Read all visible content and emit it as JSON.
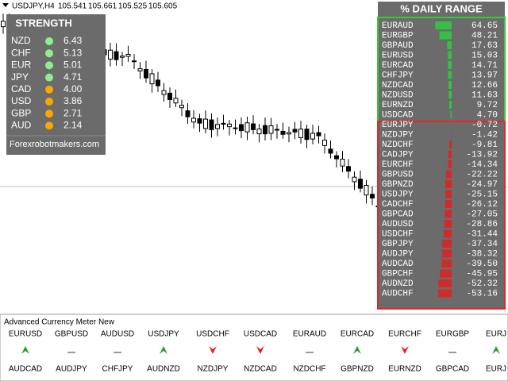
{
  "header": {
    "symbol": "USDJPY,H4",
    "prices": [
      "105.541",
      "105.661",
      "105.525",
      "105.605"
    ]
  },
  "strength": {
    "title": "STRENGTH",
    "footer": "Forexrobotmakers.com",
    "rows": [
      {
        "currency": "NZD",
        "value": "6.43",
        "color": "#90ee90"
      },
      {
        "currency": "CHF",
        "value": "5.13",
        "color": "#90ee90"
      },
      {
        "currency": "EUR",
        "value": "5.01",
        "color": "#90ee90"
      },
      {
        "currency": "JPY",
        "value": "4.71",
        "color": "#90ee90"
      },
      {
        "currency": "CAD",
        "value": "4.00",
        "color": "#ffa500"
      },
      {
        "currency": "USD",
        "value": "3.86",
        "color": "#ffa500"
      },
      {
        "currency": "GBP",
        "value": "2.71",
        "color": "#ffa500"
      },
      {
        "currency": "AUD",
        "value": "2.14",
        "color": "#ffa500"
      }
    ]
  },
  "daily_range": {
    "title": "% DAILY RANGE",
    "rows": [
      {
        "pair": "EURAUD",
        "value": 64.65,
        "label": "64.65"
      },
      {
        "pair": "EURGBP",
        "value": 48.21,
        "label": "48.21"
      },
      {
        "pair": "GBPAUD",
        "value": 17.63,
        "label": "17.63"
      },
      {
        "pair": "EURUSD",
        "value": 15.03,
        "label": "15.03"
      },
      {
        "pair": "EURCAD",
        "value": 14.71,
        "label": "14.71"
      },
      {
        "pair": "CHFJPY",
        "value": 13.97,
        "label": "13.97"
      },
      {
        "pair": "NZDCAD",
        "value": 12.66,
        "label": "12.66"
      },
      {
        "pair": "NZDUSD",
        "value": 11.63,
        "label": "11.63"
      },
      {
        "pair": "EURNZD",
        "value": 9.72,
        "label": "9.72"
      },
      {
        "pair": "USDCAD",
        "value": 4.7,
        "label": "4.70"
      },
      {
        "pair": "EURJPY",
        "value": -0.72,
        "label": "-0.72"
      },
      {
        "pair": "NZDJPY",
        "value": -1.42,
        "label": "-1.42"
      },
      {
        "pair": "NZDCHF",
        "value": -9.81,
        "label": "-9.81"
      },
      {
        "pair": "CADJPY",
        "value": -13.92,
        "label": "-13.92"
      },
      {
        "pair": "EURCHF",
        "value": -14.34,
        "label": "-14.34"
      },
      {
        "pair": "GBPUSD",
        "value": -22.22,
        "label": "-22.22"
      },
      {
        "pair": "GBPNZD",
        "value": -24.97,
        "label": "-24.97"
      },
      {
        "pair": "USDJPY",
        "value": -25.15,
        "label": "-25.15"
      },
      {
        "pair": "CADCHF",
        "value": -26.12,
        "label": "-26.12"
      },
      {
        "pair": "GBPCAD",
        "value": -27.05,
        "label": "-27.05"
      },
      {
        "pair": "AUDUSD",
        "value": -28.86,
        "label": "-28.86"
      },
      {
        "pair": "USDCHF",
        "value": -31.44,
        "label": "-31.44"
      },
      {
        "pair": "GBPJPY",
        "value": -37.34,
        "label": "-37.34"
      },
      {
        "pair": "AUDJPY",
        "value": -38.32,
        "label": "-38.32"
      },
      {
        "pair": "AUDCAD",
        "value": -39.5,
        "label": "-39.50"
      },
      {
        "pair": "GBPCHF",
        "value": -45.95,
        "label": "-45.95"
      },
      {
        "pair": "AUDNZD",
        "value": -52.32,
        "label": "-52.32"
      },
      {
        "pair": "AUDCHF",
        "value": -53.16,
        "label": "-53.16"
      }
    ]
  },
  "meter": {
    "title": "Advanced Currency Meter New",
    "columns": [
      {
        "top": "EURUSD",
        "signal": "up",
        "bottom": "AUDCAD"
      },
      {
        "top": "GBPUSD",
        "signal": "flat",
        "bottom": "AUDJPY"
      },
      {
        "top": "AUDUSD",
        "signal": "flat",
        "bottom": "CHFJPY"
      },
      {
        "top": "USDJPY",
        "signal": "up",
        "bottom": "AUDNZD"
      },
      {
        "top": "USDCHF",
        "signal": "down",
        "bottom": "NZDJPY"
      },
      {
        "top": "USDCAD",
        "signal": "down",
        "bottom": "NZDCAD"
      },
      {
        "top": "EURAUD",
        "signal": "flat",
        "bottom": "NZDCHF"
      },
      {
        "top": "EURCAD",
        "signal": "up",
        "bottom": "GBPNZD"
      },
      {
        "top": "EURCHF",
        "signal": "down",
        "bottom": "EURNZD"
      },
      {
        "top": "EURGBP",
        "signal": "flat",
        "bottom": "GBPCAD"
      },
      {
        "top": "EURJ",
        "signal": "up",
        "bottom": "EURJ"
      }
    ]
  }
}
